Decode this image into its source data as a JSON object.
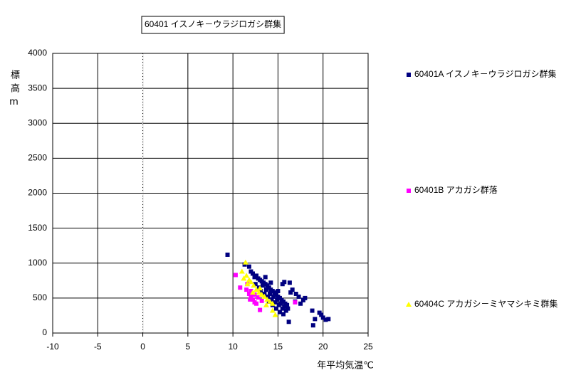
{
  "chart_data": {
    "type": "scatter",
    "title": "60401 イスノキ－ウラジロガシ群集",
    "x_label": "年平均気温℃",
    "y_label": "標高m",
    "xlim": [
      -10,
      25
    ],
    "xticks": [
      -10,
      -5,
      0,
      5,
      10,
      15,
      20,
      25
    ],
    "ylim": [
      0,
      4000
    ],
    "yticks": [
      0,
      500,
      1000,
      1500,
      2000,
      2500,
      3000,
      3500,
      4000
    ],
    "grid": true,
    "legend_position": "right",
    "series": [
      {
        "name": "60401A イスノキ－ウラジロガシ群集",
        "color": "#000080",
        "marker": "square",
        "x": [
          9.4,
          11.3,
          11.8,
          12.0,
          12.2,
          12.4,
          12.6,
          12.8,
          13.0,
          13.2,
          13.4,
          13.6,
          13.8,
          14.0,
          14.2,
          14.4,
          14.6,
          14.8,
          15.0,
          15.2,
          15.4,
          15.6,
          15.8,
          16.0,
          12.5,
          12.9,
          13.3,
          13.7,
          14.1,
          14.5,
          14.9,
          15.3,
          15.7,
          16.1,
          13.1,
          13.5,
          13.9,
          14.3,
          14.7,
          15.1,
          15.5,
          15.9,
          14.0,
          14.4,
          14.8,
          15.2,
          15.6,
          16.2,
          15.7,
          16.3,
          16.6,
          17.0,
          17.3,
          17.8,
          18.0,
          16.9,
          17.5,
          18.8,
          19.1,
          18.9,
          19.6,
          19.8,
          20.0,
          20.3,
          20.6,
          16.4,
          15.0,
          14.2,
          13.6,
          15.5
        ],
        "y": [
          1120,
          980,
          950,
          880,
          850,
          800,
          820,
          780,
          760,
          740,
          720,
          700,
          680,
          650,
          620,
          600,
          580,
          550,
          520,
          500,
          470,
          450,
          420,
          400,
          700,
          650,
          680,
          620,
          560,
          520,
          480,
          420,
          380,
          350,
          600,
          560,
          520,
          480,
          440,
          400,
          350,
          320,
          450,
          400,
          350,
          300,
          270,
          160,
          730,
          720,
          620,
          560,
          520,
          470,
          500,
          450,
          420,
          320,
          200,
          110,
          290,
          260,
          220,
          190,
          200,
          580,
          600,
          720,
          800,
          700
        ]
      },
      {
        "name": "60401B アカガシ群落",
        "color": "#ff00ff",
        "marker": "square",
        "x": [
          10.3,
          10.8,
          11.5,
          11.8,
          12.0,
          12.2,
          12.4,
          12.6,
          11.6,
          12.0,
          12.4,
          12.8,
          13.2,
          13.0,
          16.9,
          11.9
        ],
        "y": [
          830,
          650,
          620,
          560,
          520,
          480,
          440,
          420,
          700,
          600,
          550,
          510,
          460,
          330,
          440,
          480
        ]
      },
      {
        "name": "60404C アカガシ－ミヤマシキミ群集",
        "color": "#ffff00",
        "marker": "triangle",
        "x": [
          11.0,
          11.4,
          11.5,
          11.8,
          11.6,
          12.0,
          12.3,
          12.6,
          12.9,
          13.2,
          13.5,
          13.8,
          14.1,
          14.4,
          14.7,
          14.4,
          13.0,
          12.2,
          11.2,
          13.7
        ],
        "y": [
          880,
          1010,
          820,
          760,
          700,
          730,
          680,
          620,
          580,
          550,
          520,
          480,
          450,
          420,
          260,
          320,
          640,
          580,
          780,
          400
        ]
      }
    ]
  }
}
